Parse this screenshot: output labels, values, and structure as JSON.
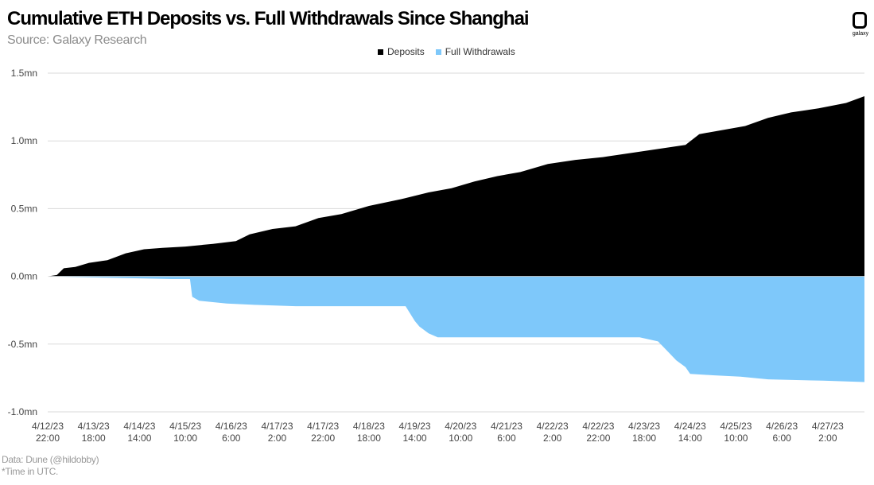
{
  "header": {
    "title": "Cumulative ETH Deposits vs. Full Withdrawals Since Shanghai",
    "subtitle": "Source: Galaxy Research"
  },
  "logo": {
    "text": "galaxy",
    "icon": "galaxy-logo-icon"
  },
  "footer": {
    "data_note": "Data: Dune (@hildobby)",
    "time_note": "*Time in UTC."
  },
  "colors": {
    "deposits": "#000000",
    "withdrawals": "#7ec8fa",
    "grid": "#d9d9d9",
    "subtitle": "#8c8c8c"
  },
  "chart_data": {
    "type": "area",
    "title": "Cumulative ETH Deposits vs. Full Withdrawals Since Shanghai",
    "xlabel": "",
    "ylabel": "",
    "ylim": [
      -1.0,
      1.5
    ],
    "yticks": [
      {
        "value": 1.5,
        "label": "1.5mn"
      },
      {
        "value": 1.0,
        "label": "1.0mn"
      },
      {
        "value": 0.5,
        "label": "0.5mn"
      },
      {
        "value": 0.0,
        "label": "0.0mn"
      },
      {
        "value": -0.5,
        "label": "-0.5mn"
      },
      {
        "value": -1.0,
        "label": "-1.0mn"
      }
    ],
    "grid": true,
    "legend_position": "top-center",
    "xticks": [
      {
        "date": "4/12/23",
        "time": "22:00"
      },
      {
        "date": "4/13/23",
        "time": "18:00"
      },
      {
        "date": "4/14/23",
        "time": "14:00"
      },
      {
        "date": "4/15/23",
        "time": "10:00"
      },
      {
        "date": "4/16/23",
        "time": "6:00"
      },
      {
        "date": "4/17/23",
        "time": "2:00"
      },
      {
        "date": "4/17/23",
        "time": "22:00"
      },
      {
        "date": "4/18/23",
        "time": "18:00"
      },
      {
        "date": "4/19/23",
        "time": "14:00"
      },
      {
        "date": "4/20/23",
        "time": "10:00"
      },
      {
        "date": "4/21/23",
        "time": "6:00"
      },
      {
        "date": "4/22/23",
        "time": "2:00"
      },
      {
        "date": "4/22/23",
        "time": "22:00"
      },
      {
        "date": "4/23/23",
        "time": "18:00"
      },
      {
        "date": "4/24/23",
        "time": "14:00"
      },
      {
        "date": "4/25/23",
        "time": "10:00"
      },
      {
        "date": "4/26/23",
        "time": "6:00"
      },
      {
        "date": "4/27/23",
        "time": "2:00"
      }
    ],
    "series": [
      {
        "name": "Deposits",
        "color": "#000000",
        "x": [
          "2023-04-12 22:00",
          "2023-04-13 02:00",
          "2023-04-13 05:00",
          "2023-04-13 10:00",
          "2023-04-13 16:00",
          "2023-04-14 00:00",
          "2023-04-14 08:00",
          "2023-04-14 16:00",
          "2023-04-15 00:00",
          "2023-04-15 10:00",
          "2023-04-15 22:00",
          "2023-04-16 08:00",
          "2023-04-16 14:00",
          "2023-04-17 00:00",
          "2023-04-17 10:00",
          "2023-04-17 20:00",
          "2023-04-18 06:00",
          "2023-04-18 18:00",
          "2023-04-19 08:00",
          "2023-04-19 20:00",
          "2023-04-20 06:00",
          "2023-04-20 16:00",
          "2023-04-21 02:00",
          "2023-04-21 12:00",
          "2023-04-22 00:00",
          "2023-04-22 12:00",
          "2023-04-23 00:00",
          "2023-04-23 12:00",
          "2023-04-24 00:00",
          "2023-04-24 12:00",
          "2023-04-24 18:00",
          "2023-04-25 04:00",
          "2023-04-25 14:00",
          "2023-04-26 00:00",
          "2023-04-26 10:00",
          "2023-04-26 22:00",
          "2023-04-27 10:00",
          "2023-04-27 18:00"
        ],
        "values": [
          0.0,
          0.01,
          0.06,
          0.07,
          0.1,
          0.12,
          0.17,
          0.2,
          0.21,
          0.22,
          0.24,
          0.26,
          0.31,
          0.35,
          0.37,
          0.43,
          0.46,
          0.52,
          0.57,
          0.62,
          0.65,
          0.7,
          0.74,
          0.77,
          0.83,
          0.86,
          0.88,
          0.91,
          0.94,
          0.97,
          1.05,
          1.08,
          1.11,
          1.17,
          1.21,
          1.24,
          1.28,
          1.33
        ]
      },
      {
        "name": "Full Withdrawals",
        "color": "#7ec8fa",
        "x": [
          "2023-04-12 22:00",
          "2023-04-14 00:00",
          "2023-04-15 04:00",
          "2023-04-15 12:00",
          "2023-04-15 13:00",
          "2023-04-15 16:00",
          "2023-04-16 04:00",
          "2023-04-16 16:00",
          "2023-04-17 10:00",
          "2023-04-18 12:00",
          "2023-04-19 10:00",
          "2023-04-19 14:00",
          "2023-04-19 16:00",
          "2023-04-19 20:00",
          "2023-04-20 00:00",
          "2023-04-21 00:00",
          "2023-04-22 00:00",
          "2023-04-23 00:00",
          "2023-04-23 16:00",
          "2023-04-24 00:00",
          "2023-04-24 04:00",
          "2023-04-24 08:00",
          "2023-04-24 12:00",
          "2023-04-24 14:00",
          "2023-04-25 00:00",
          "2023-04-25 12:00",
          "2023-04-26 00:00",
          "2023-04-27 00:00",
          "2023-04-27 18:00"
        ],
        "values": [
          0.0,
          -0.01,
          -0.02,
          -0.02,
          -0.15,
          -0.18,
          -0.2,
          -0.21,
          -0.22,
          -0.22,
          -0.22,
          -0.33,
          -0.37,
          -0.42,
          -0.45,
          -0.45,
          -0.45,
          -0.45,
          -0.45,
          -0.48,
          -0.55,
          -0.62,
          -0.67,
          -0.72,
          -0.73,
          -0.74,
          -0.76,
          -0.77,
          -0.78
        ]
      }
    ]
  }
}
